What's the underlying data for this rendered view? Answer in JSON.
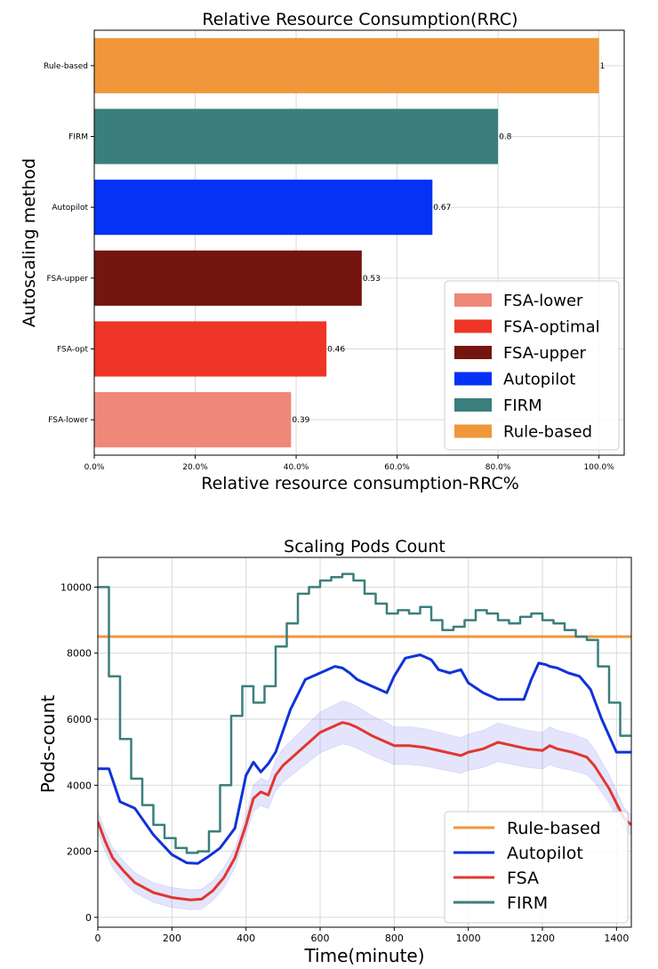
{
  "chart_data": [
    {
      "type": "bar",
      "orientation": "horizontal",
      "title": "Relative Resource Consumption(RRC)",
      "xlabel": "Relative resource consumption-RRC%",
      "ylabel": "Autoscaling method",
      "xlim": [
        0,
        1.05
      ],
      "xticks": [
        0,
        0.2,
        0.4,
        0.6,
        0.8,
        1.0
      ],
      "xtick_labels": [
        "0.0%",
        "20.0%",
        "40.0%",
        "60.0%",
        "80.0%",
        "100.0%"
      ],
      "grid": true,
      "legend_position": "lower-right",
      "categories": [
        "FSA-lower",
        "FSA-opt",
        "FSA-upper",
        "Autopilot",
        "FIRM",
        "Rule-based"
      ],
      "values": [
        0.39,
        0.46,
        0.53,
        0.67,
        0.8,
        1
      ],
      "value_labels": [
        "0.39",
        "0.46",
        "0.53",
        "0.67",
        "0.8",
        "1"
      ],
      "colors": [
        "#ee8878",
        "#ee3526",
        "#75150f",
        "#0532f5",
        "#3a7f7c",
        "#f0973a"
      ],
      "legend": [
        {
          "label": "FSA-lower",
          "color": "#ee8878"
        },
        {
          "label": "FSA-optimal",
          "color": "#ee3526"
        },
        {
          "label": "FSA-upper",
          "color": "#75150f"
        },
        {
          "label": "Autopilot",
          "color": "#0532f5"
        },
        {
          "label": "FIRM",
          "color": "#3a7f7c"
        },
        {
          "label": "Rule-based",
          "color": "#f0973a"
        }
      ]
    },
    {
      "type": "line",
      "title": "Scaling Pods Count",
      "xlabel": "Time(minute)",
      "ylabel": "Pods-count",
      "xlim": [
        0,
        1440
      ],
      "ylim": [
        -300,
        10900
      ],
      "xticks": [
        0,
        200,
        400,
        600,
        800,
        1000,
        1200,
        1400
      ],
      "yticks": [
        0,
        2000,
        4000,
        6000,
        8000,
        10000
      ],
      "grid": true,
      "legend_position": "lower-right",
      "series": [
        {
          "name": "Rule-based",
          "color": "#f0973a",
          "x": [
            0,
            1440
          ],
          "y": [
            8500,
            8500
          ]
        },
        {
          "name": "Autopilot",
          "color": "#1033d8",
          "x": [
            0,
            30,
            60,
            100,
            150,
            200,
            240,
            270,
            300,
            330,
            370,
            400,
            420,
            440,
            460,
            480,
            520,
            560,
            600,
            640,
            660,
            680,
            700,
            740,
            780,
            800,
            830,
            870,
            900,
            920,
            950,
            980,
            1000,
            1040,
            1080,
            1120,
            1150,
            1170,
            1190,
            1210,
            1220,
            1240,
            1270,
            1300,
            1330,
            1360,
            1400,
            1410,
            1440
          ],
          "y": [
            4500,
            4500,
            3500,
            3300,
            2500,
            1900,
            1650,
            1630,
            1850,
            2100,
            2700,
            4300,
            4700,
            4400,
            4650,
            5000,
            6300,
            7200,
            7400,
            7600,
            7550,
            7400,
            7200,
            7000,
            6800,
            7300,
            7850,
            7950,
            7800,
            7500,
            7400,
            7500,
            7100,
            6800,
            6600,
            6600,
            6600,
            7200,
            7700,
            7650,
            7600,
            7550,
            7400,
            7300,
            6900,
            6000,
            5000,
            5000,
            5000
          ]
        },
        {
          "name": "FSA",
          "color": "#e0372f",
          "x": [
            0,
            20,
            40,
            70,
            100,
            150,
            200,
            250,
            280,
            310,
            340,
            370,
            400,
            420,
            440,
            460,
            480,
            500,
            520,
            560,
            600,
            640,
            660,
            680,
            700,
            740,
            780,
            800,
            840,
            880,
            900,
            940,
            980,
            1000,
            1040,
            1080,
            1120,
            1160,
            1200,
            1220,
            1240,
            1280,
            1320,
            1340,
            1380,
            1420,
            1440
          ],
          "y": [
            2900,
            2300,
            1800,
            1400,
            1050,
            750,
            600,
            530,
            550,
            800,
            1200,
            1800,
            2800,
            3600,
            3800,
            3700,
            4300,
            4600,
            4800,
            5200,
            5600,
            5800,
            5900,
            5850,
            5750,
            5500,
            5300,
            5200,
            5200,
            5150,
            5100,
            5000,
            4900,
            5000,
            5100,
            5300,
            5200,
            5100,
            5050,
            5200,
            5100,
            5000,
            4850,
            4600,
            3900,
            3000,
            2800
          ]
        },
        {
          "name": "FIRM",
          "color": "#3a7f7c",
          "x": [
            0,
            30,
            60,
            90,
            120,
            150,
            180,
            210,
            240,
            270,
            300,
            330,
            360,
            390,
            420,
            450,
            480,
            510,
            540,
            570,
            600,
            630,
            660,
            690,
            720,
            750,
            780,
            810,
            840,
            870,
            900,
            930,
            960,
            990,
            1020,
            1050,
            1080,
            1110,
            1140,
            1170,
            1200,
            1230,
            1260,
            1290,
            1320,
            1350,
            1380,
            1410,
            1440
          ],
          "y": [
            10000,
            7300,
            5400,
            4200,
            3400,
            2800,
            2400,
            2100,
            1950,
            2000,
            2600,
            4000,
            6100,
            7000,
            6500,
            7000,
            8200,
            8900,
            9800,
            10000,
            10200,
            10300,
            10400,
            10200,
            9800,
            9500,
            9200,
            9300,
            9200,
            9400,
            9000,
            8700,
            8800,
            9000,
            9300,
            9200,
            9000,
            8900,
            9100,
            9200,
            9000,
            8900,
            8700,
            8500,
            8400,
            7600,
            6500,
            5500,
            5500
          ]
        }
      ]
    }
  ]
}
